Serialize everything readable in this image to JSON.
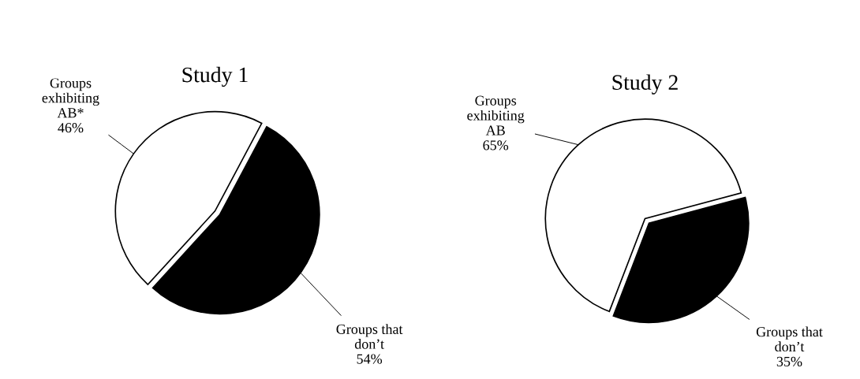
{
  "chart_data": [
    {
      "type": "pie",
      "title": "Study 1",
      "categories": [
        "Groups\nexhibiting\nAB*",
        "Groups that\ndon’t"
      ],
      "values": [
        46,
        54
      ],
      "colors": [
        "#ffffff",
        "#000000"
      ],
      "value_labels": [
        "46%",
        "54%"
      ]
    },
    {
      "type": "pie",
      "title": "Study 2",
      "categories": [
        "Groups\nexhibiting\nAB",
        "Groups that\ndon’t"
      ],
      "values": [
        65,
        35
      ],
      "colors": [
        "#ffffff",
        "#000000"
      ],
      "value_labels": [
        "65%",
        "35%"
      ]
    }
  ]
}
